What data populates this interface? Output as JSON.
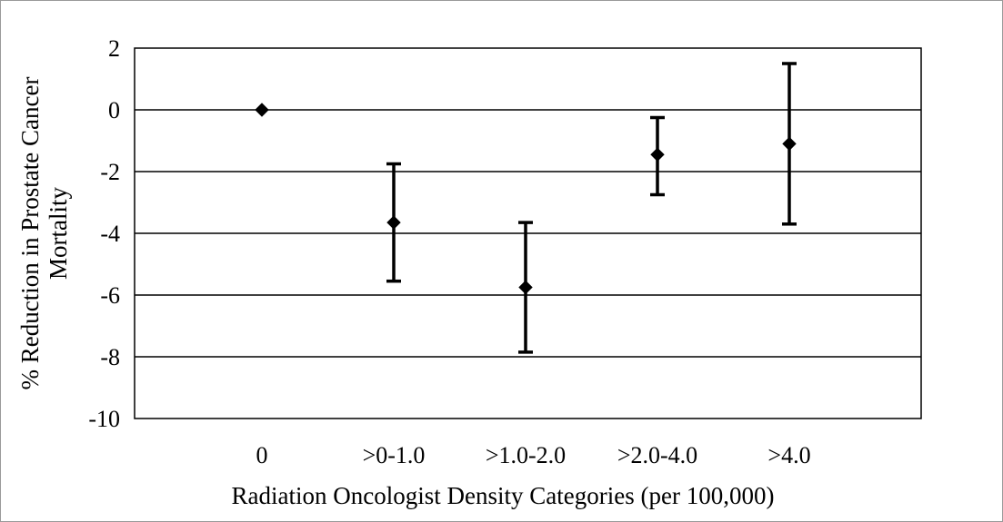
{
  "chart_data": {
    "type": "scatter",
    "title": "",
    "xlabel": "Radiation Oncologist Density Categories (per 100,000)",
    "ylabel_lines": [
      "% Reduction in Prostate Cancer",
      "Mortality"
    ],
    "categories": [
      "0",
      ">0-1.0",
      ">1.0-2.0",
      ">2.0-4.0",
      ">4.0"
    ],
    "series": [
      {
        "values": [
          0,
          -3.65,
          -5.75,
          -1.45,
          -1.1
        ],
        "error_low": [
          null,
          -5.55,
          -7.85,
          -2.75,
          -3.7
        ],
        "error_high": [
          null,
          -1.75,
          -3.65,
          -0.25,
          1.5
        ]
      }
    ],
    "ylim": [
      -10,
      2
    ],
    "yticks": [
      2,
      0,
      -2,
      -4,
      -6,
      -8,
      -10
    ],
    "ytick_labels": [
      "2",
      "0",
      "-2",
      "-4",
      "-6",
      "-8",
      "-10"
    ],
    "grid": true,
    "legend": "none",
    "colors": {
      "marker": "#000000",
      "gridline": "#000000",
      "frame": "#9a9a9a"
    }
  }
}
